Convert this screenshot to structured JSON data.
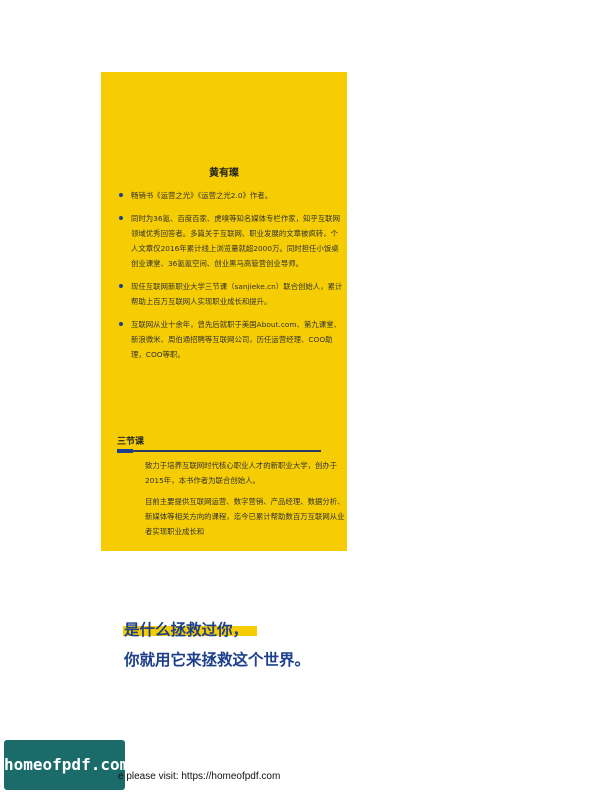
{
  "flap": {
    "author_name": "黄有璨",
    "bullets": [
      "畅销书《运营之光》《运营之光2.0》作者。",
      "同时为36氪、百度百家、虎嗅等知名媒体专栏作家，知乎互联网领域优秀回答者。多篇关于互联网、职业发展的文章被疯转，个人文章仅2016年累计线上浏览量就超2000万。同时担任小饭桌创业课堂、36氪氪空间、创业黑马高管营创业导师。",
      "现任互联网新职业大学三节课（sanjieke.cn）联合创始人，累计帮助上百万互联网人实现职业成长和提升。",
      "互联网从业十余年，曾先后就职于美国About.com、第九课堂、新浪微米、周伯通招聘等互联网公司，历任运营经理、COO助理，COO等职。"
    ],
    "section": {
      "title": "三节课",
      "paragraphs": [
        "致力于培养互联网时代核心职业人才的新职业大学，创办于2015年，本书作者为联合创始人。",
        "目前主要提供互联网运营、数字营销、产品经理、数据分析、新媒体等相关方向的课程，迄今已累计帮助数百万互联网从业者实现职业成长和"
      ]
    }
  },
  "slogan": {
    "line1": "是什么拯救过你，",
    "line2": "你就用它来拯救这个世界。"
  },
  "footer": {
    "logo_text": "homeofpdf.com",
    "visit_text": "e please visit: https://homeofpdf.com"
  },
  "colors": {
    "flap_background": "#f6cd02",
    "accent_blue": "#1d3f8c",
    "logo_background": "#1a6b6a"
  }
}
